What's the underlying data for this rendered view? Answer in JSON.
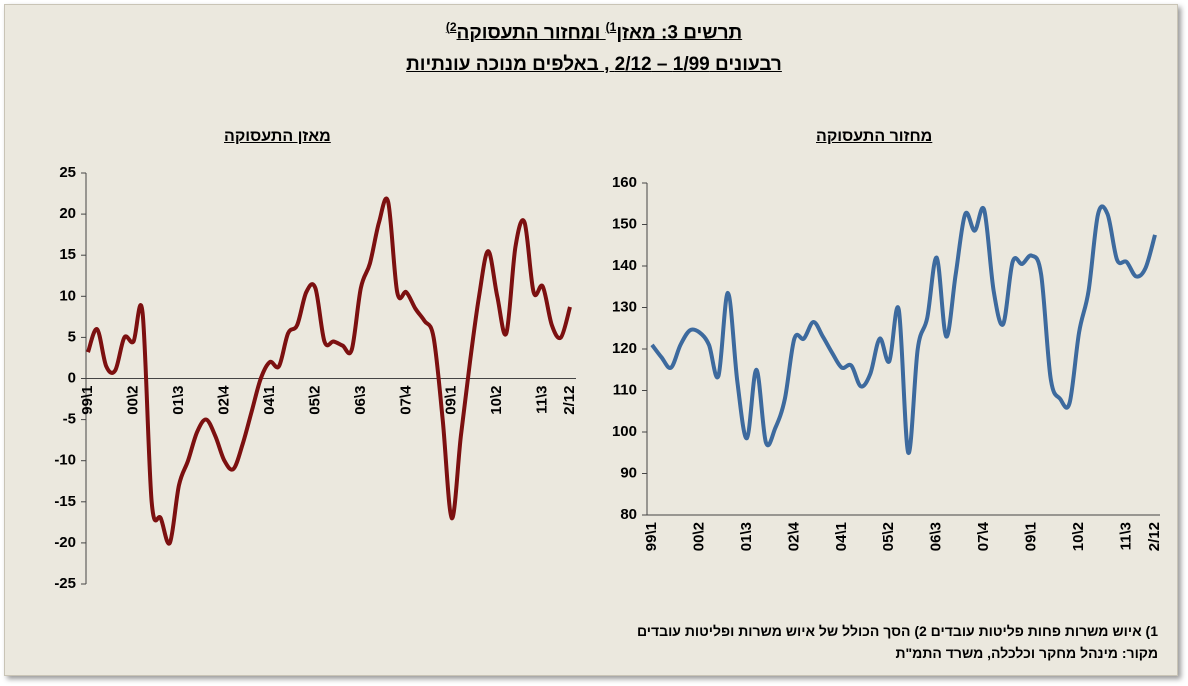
{
  "header": {
    "title": [
      "תרשים 3: מאזן",
      "1)",
      " ומחזור התעסוקה",
      "2)"
    ],
    "subtitle": "רבעונים 1/99 – 2/12 , באלפים מנוכה עונתיות"
  },
  "chart_data": [
    {
      "type": "line",
      "title": "מאזן התעסוקה",
      "color": "#7c1010",
      "categories": [
        "99\\1",
        null,
        null,
        null,
        null,
        "00\\2",
        null,
        null,
        null,
        null,
        "01\\3",
        null,
        null,
        null,
        null,
        "02\\4",
        null,
        null,
        null,
        null,
        "04\\1",
        null,
        null,
        null,
        null,
        "05\\2",
        null,
        null,
        null,
        null,
        "06\\3",
        null,
        null,
        null,
        null,
        "07\\4",
        null,
        null,
        null,
        null,
        "09\\1",
        null,
        null,
        null,
        null,
        "10\\2",
        null,
        null,
        null,
        null,
        "11\\3",
        null,
        null,
        "2/12"
      ],
      "values": [
        3.2,
        6,
        1.5,
        1,
        5,
        4.5,
        8,
        -15,
        -17,
        -20,
        -13,
        -10,
        -6.5,
        -5,
        -7,
        -10,
        -11,
        -8,
        -4,
        0,
        2,
        1.5,
        5.5,
        6.5,
        10.5,
        11,
        4.5,
        4.5,
        4,
        3.5,
        11,
        14,
        19,
        21.5,
        10.5,
        10.5,
        8.5,
        7,
        5,
        -5,
        -17,
        -7,
        2,
        10,
        15.5,
        10,
        5.5,
        16,
        19,
        10.5,
        11.2,
        6.5,
        5,
        8.7
      ],
      "ylim": [
        -25,
        25
      ],
      "yticks": [
        -25,
        -20,
        -15,
        -10,
        -5,
        0,
        5,
        10,
        15,
        20,
        25
      ]
    },
    {
      "type": "line",
      "title": "מחזור התעסוקה",
      "color": "#3d6a9e",
      "categories": [
        "99\\1",
        null,
        null,
        null,
        null,
        "00\\2",
        null,
        null,
        null,
        null,
        "01\\3",
        null,
        null,
        null,
        null,
        "02\\4",
        null,
        null,
        null,
        null,
        "04\\1",
        null,
        null,
        null,
        null,
        "05\\2",
        null,
        null,
        null,
        null,
        "06\\3",
        null,
        null,
        null,
        null,
        "07\\4",
        null,
        null,
        null,
        null,
        "09\\1",
        null,
        null,
        null,
        null,
        "10\\2",
        null,
        null,
        null,
        null,
        "11\\3",
        null,
        null,
        "2/12"
      ],
      "values": [
        121,
        118,
        115.5,
        121,
        124.5,
        124,
        121,
        113.5,
        133.5,
        112,
        98.5,
        115,
        97.5,
        101,
        108,
        122.5,
        122.5,
        126.5,
        123,
        119,
        115.5,
        116,
        111,
        114,
        122.5,
        117,
        129.5,
        95,
        120,
        127.5,
        142,
        123,
        138,
        152.5,
        148.5,
        153.5,
        134,
        126,
        141,
        140.5,
        142.5,
        138,
        113,
        108,
        107,
        124,
        134,
        152.5,
        152.5,
        141.5,
        141,
        137.5,
        139.5,
        147.5
      ],
      "ylim": [
        80,
        160
      ],
      "yticks": [
        80,
        90,
        100,
        110,
        120,
        130,
        140,
        150,
        160
      ]
    }
  ],
  "notes": [
    "1) איוש משרות פחות פליטות עובדים 2) הסך הכולל של איוש משרות ופליטות עובדים",
    "מקור: מינהל מחקר וכלכלה, משרד התמ\"ת"
  ]
}
